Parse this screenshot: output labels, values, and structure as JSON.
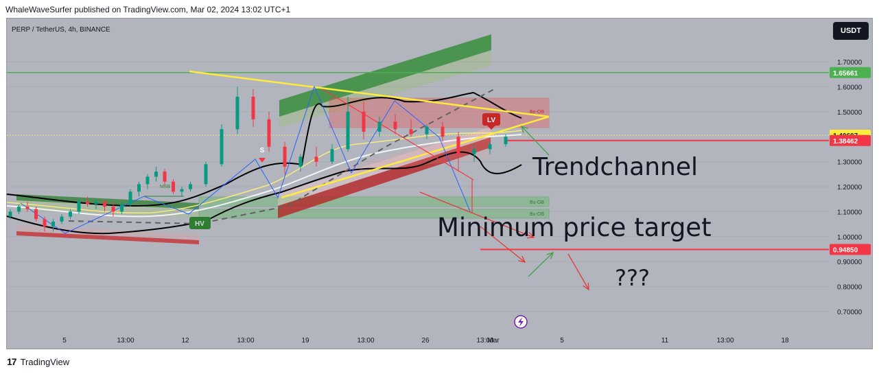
{
  "header": {
    "published_line": "WhaleWaveSurfer published on TradingView.com, Mar 02, 2024 13:02 UTC+1"
  },
  "footer": {
    "brand": "TradingView",
    "logo_text": "17"
  },
  "toolbar": {
    "currency_button": "USDT"
  },
  "colors": {
    "background": "#b2b5be",
    "up_candle": "#089981",
    "down_candle": "#f23645",
    "trendline": "#ffeb3b",
    "resistance_line": "#4caf50",
    "support_red": "#f23645"
  },
  "chart_data": {
    "type": "candlestick",
    "title": "PERP / TetherUS, 4h, BINANCE",
    "symbol": "PERP / TetherUS",
    "interval": "4h",
    "exchange": "BINANCE",
    "ylim": [
      0.62,
      1.83
    ],
    "y_ticks": [
      "1.70000",
      "1.60000",
      "1.50000",
      "1.30000",
      "1.20000",
      "1.10000",
      "1.00000",
      "0.90000",
      "0.80000",
      "0.70000"
    ],
    "y_tick_values": [
      1.7,
      1.6,
      1.5,
      1.3,
      1.2,
      1.1,
      1.0,
      0.9,
      0.8,
      0.7
    ],
    "x_ticks": [
      "5",
      "13:00",
      "12",
      "13:00",
      "19",
      "13:00",
      "26",
      "13:00",
      "Mar",
      "5",
      "11",
      "13:00",
      "18"
    ],
    "price_labels": [
      {
        "label": "1.65661",
        "value": 1.65661,
        "color": "#4caf50",
        "text_color": "#ffffff"
      },
      {
        "label": "1.40607",
        "value": 1.40607,
        "color": "#ffeb3b",
        "text_color": "#131722"
      },
      {
        "label": "1.38462",
        "value": 1.38462,
        "color": "#f23645",
        "text_color": "#ffffff"
      },
      {
        "label": "0.94850",
        "value": 0.9485,
        "color": "#f23645",
        "text_color": "#ffffff"
      }
    ],
    "annotations": [
      {
        "text": "Trendchannel"
      },
      {
        "text": "Minimum price target"
      },
      {
        "text": "???"
      },
      {
        "text": "LV"
      },
      {
        "text": "S"
      },
      {
        "text": "MSB"
      },
      {
        "text": "Bu-OB"
      },
      {
        "text": "Bu-OB"
      },
      {
        "text": "Be-OB"
      }
    ],
    "candles": [
      {
        "t": 0,
        "o": 1.08,
        "h": 1.11,
        "l": 1.07,
        "c": 1.1
      },
      {
        "t": 1,
        "o": 1.1,
        "h": 1.13,
        "l": 1.09,
        "c": 1.12
      },
      {
        "t": 2,
        "o": 1.12,
        "h": 1.14,
        "l": 1.1,
        "c": 1.11
      },
      {
        "t": 3,
        "o": 1.11,
        "h": 1.12,
        "l": 1.06,
        "c": 1.07
      },
      {
        "t": 4,
        "o": 1.07,
        "h": 1.08,
        "l": 1.02,
        "c": 1.04
      },
      {
        "t": 5,
        "o": 1.04,
        "h": 1.07,
        "l": 1.02,
        "c": 1.06
      },
      {
        "t": 6,
        "o": 1.06,
        "h": 1.09,
        "l": 1.05,
        "c": 1.08
      },
      {
        "t": 7,
        "o": 1.08,
        "h": 1.11,
        "l": 1.07,
        "c": 1.1
      },
      {
        "t": 8,
        "o": 1.1,
        "h": 1.15,
        "l": 1.09,
        "c": 1.14
      },
      {
        "t": 9,
        "o": 1.14,
        "h": 1.16,
        "l": 1.12,
        "c": 1.13
      },
      {
        "t": 10,
        "o": 1.13,
        "h": 1.15,
        "l": 1.11,
        "c": 1.14
      },
      {
        "t": 11,
        "o": 1.14,
        "h": 1.15,
        "l": 1.1,
        "c": 1.12
      },
      {
        "t": 12,
        "o": 1.12,
        "h": 1.14,
        "l": 1.08,
        "c": 1.1
      },
      {
        "t": 13,
        "o": 1.1,
        "h": 1.14,
        "l": 1.09,
        "c": 1.13
      },
      {
        "t": 14,
        "o": 1.13,
        "h": 1.19,
        "l": 1.12,
        "c": 1.18
      },
      {
        "t": 15,
        "o": 1.18,
        "h": 1.22,
        "l": 1.16,
        "c": 1.21
      },
      {
        "t": 16,
        "o": 1.21,
        "h": 1.25,
        "l": 1.19,
        "c": 1.24
      },
      {
        "t": 17,
        "o": 1.24,
        "h": 1.28,
        "l": 1.22,
        "c": 1.26
      },
      {
        "t": 18,
        "o": 1.26,
        "h": 1.27,
        "l": 1.2,
        "c": 1.22
      },
      {
        "t": 19,
        "o": 1.22,
        "h": 1.23,
        "l": 1.17,
        "c": 1.18
      },
      {
        "t": 20,
        "o": 1.18,
        "h": 1.2,
        "l": 1.16,
        "c": 1.19
      },
      {
        "t": 21,
        "o": 1.19,
        "h": 1.22,
        "l": 1.18,
        "c": 1.21
      },
      {
        "t": 22,
        "o": 1.21,
        "h": 1.3,
        "l": 1.2,
        "c": 1.29
      },
      {
        "t": 23,
        "o": 1.29,
        "h": 1.45,
        "l": 1.28,
        "c": 1.43
      },
      {
        "t": 24,
        "o": 1.43,
        "h": 1.6,
        "l": 1.41,
        "c": 1.56
      },
      {
        "t": 25,
        "o": 1.56,
        "h": 1.59,
        "l": 1.44,
        "c": 1.47
      },
      {
        "t": 26,
        "o": 1.47,
        "h": 1.5,
        "l": 1.34,
        "c": 1.36
      },
      {
        "t": 27,
        "o": 1.36,
        "h": 1.38,
        "l": 1.25,
        "c": 1.28
      },
      {
        "t": 28,
        "o": 1.28,
        "h": 1.33,
        "l": 1.26,
        "c": 1.32
      },
      {
        "t": 29,
        "o": 1.32,
        "h": 1.36,
        "l": 1.28,
        "c": 1.3
      },
      {
        "t": 30,
        "o": 1.3,
        "h": 1.37,
        "l": 1.29,
        "c": 1.35
      },
      {
        "t": 31,
        "o": 1.35,
        "h": 1.56,
        "l": 1.34,
        "c": 1.5
      },
      {
        "t": 32,
        "o": 1.5,
        "h": 1.54,
        "l": 1.39,
        "c": 1.42
      },
      {
        "t": 33,
        "o": 1.42,
        "h": 1.48,
        "l": 1.4,
        "c": 1.46
      },
      {
        "t": 34,
        "o": 1.46,
        "h": 1.49,
        "l": 1.41,
        "c": 1.43
      },
      {
        "t": 35,
        "o": 1.43,
        "h": 1.47,
        "l": 1.4,
        "c": 1.41
      },
      {
        "t": 36,
        "o": 1.41,
        "h": 1.45,
        "l": 1.39,
        "c": 1.44
      },
      {
        "t": 37,
        "o": 1.44,
        "h": 1.46,
        "l": 1.38,
        "c": 1.4
      },
      {
        "t": 38,
        "o": 1.4,
        "h": 1.42,
        "l": 1.26,
        "c": 1.33
      },
      {
        "t": 39,
        "o": 1.33,
        "h": 1.37,
        "l": 1.3,
        "c": 1.35
      },
      {
        "t": 40,
        "o": 1.35,
        "h": 1.38,
        "l": 1.33,
        "c": 1.37
      },
      {
        "t": 41,
        "o": 1.37,
        "h": 1.41,
        "l": 1.36,
        "c": 1.4
      }
    ]
  }
}
